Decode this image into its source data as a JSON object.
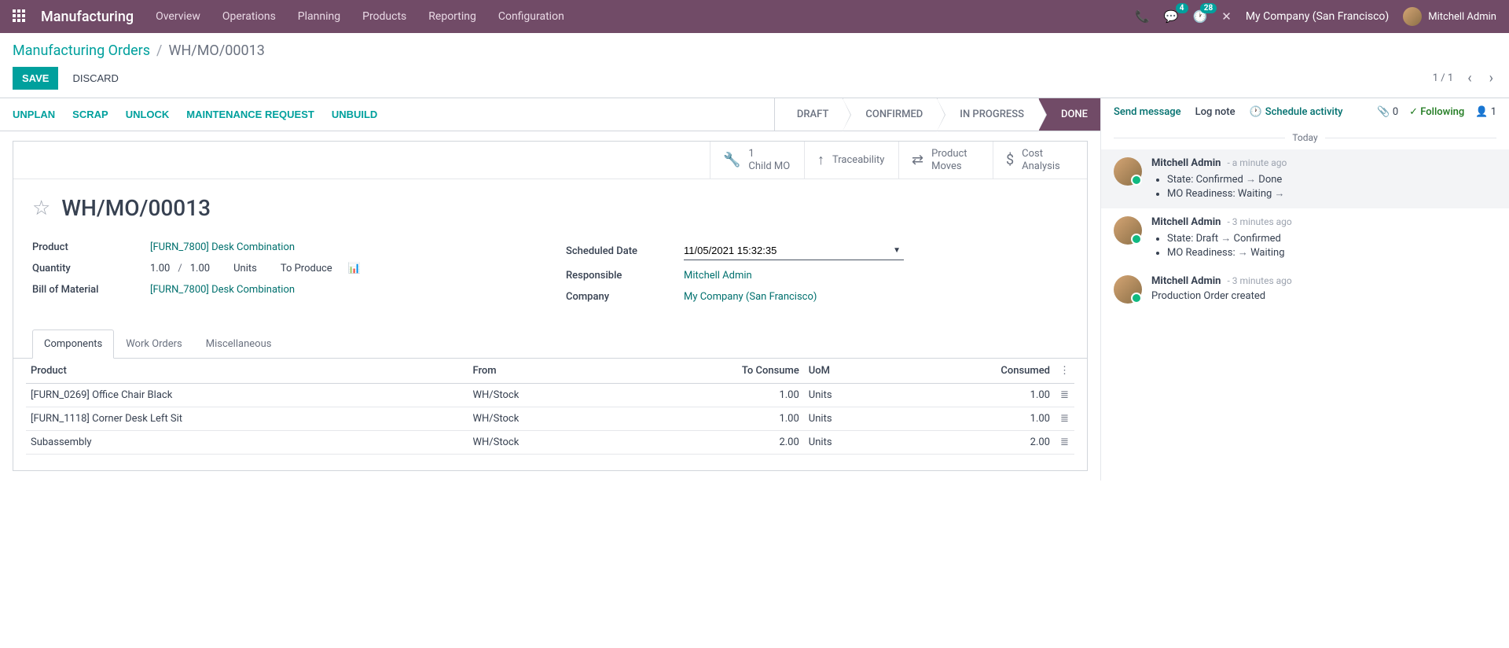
{
  "topnav": {
    "brand": "Manufacturing",
    "menu": [
      "Overview",
      "Operations",
      "Planning",
      "Products",
      "Reporting",
      "Configuration"
    ],
    "msg_badge": "4",
    "clock_badge": "28",
    "company": "My Company (San Francisco)",
    "user": "Mitchell Admin"
  },
  "breadcrumb": {
    "root": "Manufacturing Orders",
    "current": "WH/MO/00013"
  },
  "cp": {
    "save": "SAVE",
    "discard": "DISCARD",
    "pager": "1 / 1"
  },
  "statusbar": {
    "buttons": [
      "UNPLAN",
      "SCRAP",
      "UNLOCK",
      "MAINTENANCE REQUEST",
      "UNBUILD"
    ],
    "steps": [
      "DRAFT",
      "CONFIRMED",
      "IN PROGRESS",
      "DONE"
    ],
    "active_index": 3
  },
  "stat_buttons": [
    {
      "icon": "🔧",
      "line1": "1",
      "line2": "Child MO"
    },
    {
      "icon": "↑",
      "line1": "",
      "line2": "Traceability"
    },
    {
      "icon": "⇄",
      "line1": "Product",
      "line2": "Moves"
    },
    {
      "icon": "$",
      "line1": "Cost",
      "line2": "Analysis"
    }
  ],
  "record": {
    "title": "WH/MO/00013",
    "fields_left": {
      "product_label": "Product",
      "product_value": "[FURN_7800] Desk Combination",
      "qty_label": "Quantity",
      "qty1": "1.00",
      "qty2": "1.00",
      "uom": "Units",
      "to_produce": "To Produce",
      "bom_label": "Bill of Material",
      "bom_value": "[FURN_7800] Desk Combination"
    },
    "fields_right": {
      "sched_label": "Scheduled Date",
      "sched_value": "11/05/2021 15:32:35",
      "resp_label": "Responsible",
      "resp_value": "Mitchell Admin",
      "comp_label": "Company",
      "comp_value": "My Company (San Francisco)"
    }
  },
  "tabs": [
    "Components",
    "Work Orders",
    "Miscellaneous"
  ],
  "components": {
    "headers": {
      "product": "Product",
      "from": "From",
      "to_consume": "To Consume",
      "uom": "UoM",
      "consumed": "Consumed"
    },
    "rows": [
      {
        "product": "[FURN_0269] Office Chair Black",
        "from": "WH/Stock",
        "to_consume": "1.00",
        "uom": "Units",
        "consumed": "1.00"
      },
      {
        "product": "[FURN_1118] Corner Desk Left Sit",
        "from": "WH/Stock",
        "to_consume": "1.00",
        "uom": "Units",
        "consumed": "1.00"
      },
      {
        "product": "Subassembly",
        "from": "WH/Stock",
        "to_consume": "2.00",
        "uom": "Units",
        "consumed": "2.00"
      }
    ]
  },
  "chatter": {
    "send": "Send message",
    "log": "Log note",
    "schedule": "Schedule activity",
    "attach_count": "0",
    "following": "Following",
    "follower_count": "1",
    "today": "Today",
    "messages": [
      {
        "author": "Mitchell Admin",
        "time": "- a minute ago",
        "items": [
          "State: Confirmed → Done",
          "MO Readiness: Waiting →"
        ]
      },
      {
        "author": "Mitchell Admin",
        "time": "- 3 minutes ago",
        "items": [
          "State: Draft → Confirmed",
          "MO Readiness: → Waiting"
        ]
      },
      {
        "author": "Mitchell Admin",
        "time": "- 3 minutes ago",
        "text": "Production Order created"
      }
    ]
  }
}
